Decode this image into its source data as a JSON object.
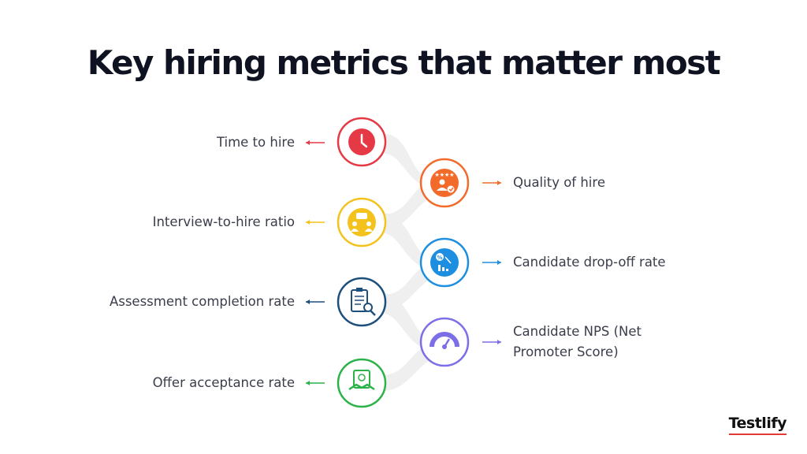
{
  "title": "Key hiring metrics that matter most",
  "metrics": [
    {
      "label": "Time to hire",
      "side": "left",
      "color": "#e53945",
      "icon": "clock-icon"
    },
    {
      "label": "Quality of hire",
      "side": "right",
      "color": "#f26b2b",
      "icon": "star-rated-person-icon"
    },
    {
      "label": "Interview-to-hire ratio",
      "side": "left",
      "color": "#f4c21c",
      "icon": "interview-people-icon"
    },
    {
      "label": "Candidate drop-off rate",
      "side": "right",
      "color": "#1e8fe0",
      "icon": "percent-chart-down-icon"
    },
    {
      "label": "Assessment completion rate",
      "side": "left",
      "color": "#1d4f7c",
      "icon": "checklist-magnifier-icon"
    },
    {
      "label": "Candidate NPS (Net Promoter Score)",
      "label_line1": "Candidate NPS (Net",
      "label_line2": "Promoter Score)",
      "side": "right",
      "color": "#7b6ee6",
      "icon": "gauge-icon"
    },
    {
      "label": "Offer acceptance rate",
      "side": "left",
      "color": "#2bb34a",
      "icon": "handshake-document-icon"
    }
  ],
  "brand": {
    "name": "Testlify",
    "accent": "#e53935"
  }
}
